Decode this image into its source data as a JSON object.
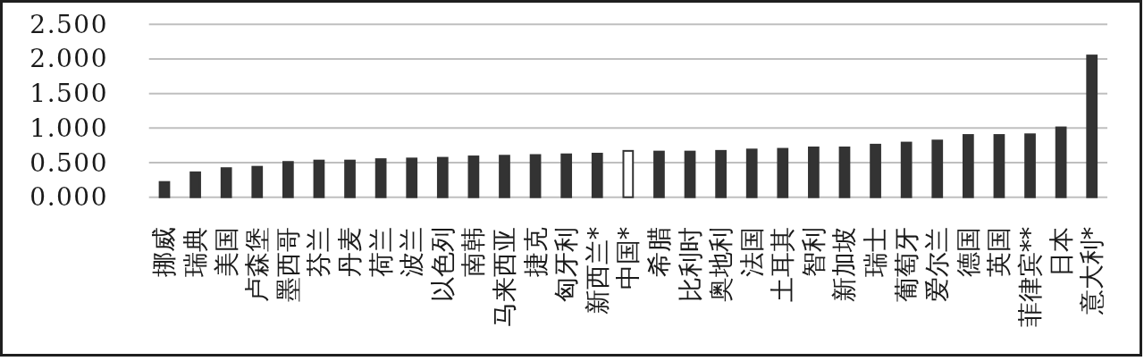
{
  "chart_data": {
    "type": "bar",
    "categories": [
      "挪威",
      "瑞典",
      "美国",
      "卢森堡",
      "墨西哥",
      "芬兰",
      "丹麦",
      "荷兰",
      "波兰",
      "以色列",
      "南韩",
      "马来西亚",
      "捷克",
      "匈牙利",
      "新西兰*",
      "中国*",
      "希腊",
      "比利时",
      "奥地利",
      "法国",
      "土耳其",
      "智利",
      "新加坡",
      "瑞士",
      "葡萄牙",
      "爱尔兰",
      "德国",
      "英国",
      "菲律宾**",
      "日本",
      "意大利*"
    ],
    "values": [
      0.22,
      0.36,
      0.42,
      0.44,
      0.51,
      0.53,
      0.53,
      0.55,
      0.56,
      0.57,
      0.59,
      0.6,
      0.61,
      0.62,
      0.63,
      0.67,
      0.66,
      0.66,
      0.67,
      0.69,
      0.7,
      0.72,
      0.72,
      0.76,
      0.79,
      0.82,
      0.9,
      0.9,
      0.91,
      1.01,
      2.05
    ],
    "color": "#333333",
    "colors": [
      "#333333",
      "#333333",
      "#333333",
      "#333333",
      "#333333",
      "#333333",
      "#333333",
      "#333333",
      "#333333",
      "#333333",
      "#333333",
      "#333333",
      "#333333",
      "#333333",
      "#333333",
      "#ffffff",
      "#333333",
      "#333333",
      "#333333",
      "#333333",
      "#333333",
      "#333333",
      "#333333",
      "#333333",
      "#333333",
      "#333333",
      "#333333",
      "#333333",
      "#333333",
      "#333333",
      "#333333"
    ],
    "ylim": [
      0,
      2.5
    ],
    "yticks": [
      {
        "value": 0,
        "label": "0.000"
      },
      {
        "value": 0.5,
        "label": "0.500"
      },
      {
        "value": 1,
        "label": "1.000"
      },
      {
        "value": 1.5,
        "label": "1.500"
      },
      {
        "value": 2,
        "label": "2.000"
      },
      {
        "value": 2.5,
        "label": "2.500"
      }
    ],
    "grid": "y"
  }
}
